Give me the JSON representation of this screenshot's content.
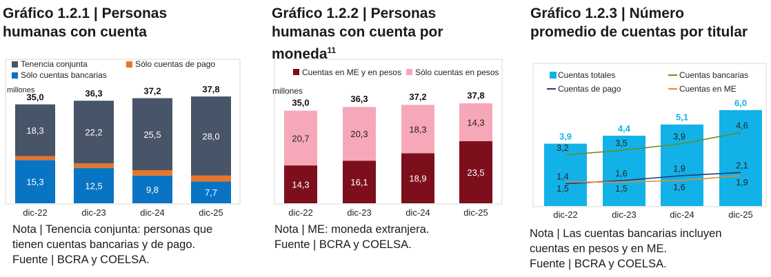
{
  "colors": {
    "joint": "#485468",
    "payonly": "#e8752a",
    "bankonly": "#0a74c4",
    "me": "#7d0f1d",
    "pesos": "#f7a8b8",
    "total": "#12b2e8",
    "bank_line": "#6a8c1e",
    "pay_line": "#1f3a78",
    "me_line": "#e8892e"
  },
  "panel1": {
    "title_1": "Gráfico 1.2.1 | Personas",
    "title_2": "humanas con cuenta",
    "note_1": "Nota | Tenencia conjunta: personas que",
    "note_2": "tienen cuentas bancarias y de pago.",
    "note_3": "Fuente | BCRA y COELSA."
  },
  "panel2": {
    "title_1": "Gráfico 1.2.2 | Personas",
    "title_2": "humanas con cuenta por",
    "title_3": "moneda",
    "title_sup": "11",
    "note_1": "Nota | ME: moneda extranjera.",
    "note_2": "Fuente | BCRA y COELSA."
  },
  "panel3": {
    "title_1": "Gráfico 1.2.3 | Número",
    "title_2": "promedio de cuentas por titular",
    "note_1": "Nota | Las cuentas bancarias incluyen",
    "note_2": "cuentas en pesos y en ME.",
    "note_3": "Fuente | BCRA y COELSA."
  },
  "chart_data": [
    {
      "type": "bar",
      "stacked": true,
      "categories": [
        "dic-22",
        "dic-23",
        "dic-24",
        "dic-25"
      ],
      "ylabel": "millones",
      "series": [
        {
          "name": "Sólo cuentas bancarias",
          "values": [
            15.3,
            12.5,
            9.8,
            7.7
          ],
          "labels": [
            "15,3",
            "12,5",
            "9,8",
            "7,7"
          ]
        },
        {
          "name": "Sólo cuentas de pago",
          "values": [
            1.4,
            1.6,
            1.9,
            2.1
          ],
          "labels": [
            "",
            "",
            "",
            ""
          ]
        },
        {
          "name": "Tenencia conjunta",
          "values": [
            18.3,
            22.2,
            25.5,
            28.0
          ],
          "labels": [
            "18,3",
            "22,2",
            "25,5",
            "28,0"
          ]
        }
      ],
      "totals": [
        35.0,
        36.3,
        37.2,
        37.8
      ],
      "total_labels": [
        "35,0",
        "36,3",
        "37,2",
        "37,8"
      ],
      "legend": "top"
    },
    {
      "type": "bar",
      "stacked": true,
      "categories": [
        "dic-22",
        "dic-23",
        "dic-24",
        "dic-25"
      ],
      "ylabel": "millones",
      "series": [
        {
          "name": "Cuentas en ME y en pesos",
          "values": [
            14.3,
            16.1,
            18.9,
            23.5
          ],
          "labels": [
            "14,3",
            "16,1",
            "18,9",
            "23,5"
          ]
        },
        {
          "name": "Sólo cuentas en pesos",
          "values": [
            20.7,
            20.3,
            18.3,
            14.3
          ],
          "labels": [
            "20,7",
            "20,3",
            "18,3",
            "14,3"
          ]
        }
      ],
      "totals": [
        35.0,
        36.3,
        37.2,
        37.8
      ],
      "total_labels": [
        "35,0",
        "36,3",
        "37,2",
        "37,8"
      ],
      "legend": "top"
    },
    {
      "type": "bar",
      "categories": [
        "dic-22",
        "dic-23",
        "dic-24",
        "dic-25"
      ],
      "series": [
        {
          "name": "Cuentas totales",
          "kind": "bar",
          "values": [
            3.9,
            4.4,
            5.1,
            6.0
          ],
          "labels": [
            "3,9",
            "4,4",
            "5,1",
            "6,0"
          ]
        },
        {
          "name": "Cuentas bancarias",
          "kind": "line",
          "values": [
            3.2,
            3.5,
            3.9,
            4.6
          ],
          "labels": [
            "3,2",
            "3,5",
            "3,9",
            "4,6"
          ]
        },
        {
          "name": "Cuentas de pago",
          "kind": "line",
          "values": [
            1.4,
            1.6,
            1.9,
            2.1
          ],
          "labels": [
            "1,4",
            "1,6",
            "1,9",
            "2,1"
          ]
        },
        {
          "name": "Cuentas en ME",
          "kind": "line",
          "values": [
            1.5,
            1.5,
            1.6,
            1.9
          ],
          "labels": [
            "1,5",
            "1,5",
            "1,6",
            "1,9"
          ]
        }
      ],
      "legend": "top"
    }
  ]
}
